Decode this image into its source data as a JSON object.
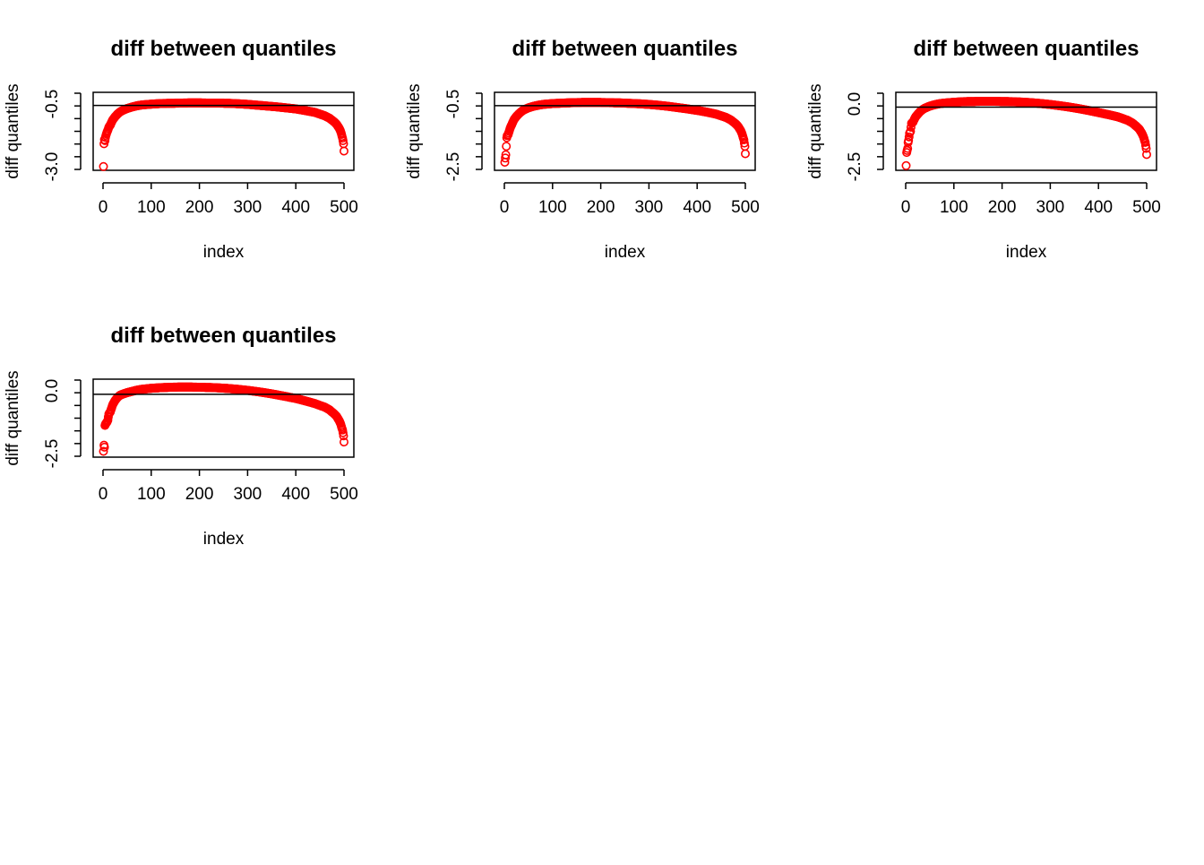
{
  "figure": {
    "background": "#ffffff",
    "point_color": "#ff0000",
    "reference_line_color": "#000000"
  },
  "chart_data": [
    {
      "type": "scatter",
      "title": "diff between quantiles",
      "xlabel": "index",
      "ylabel": "diff quantiles",
      "xlim": [
        0,
        500
      ],
      "ylim": [
        -3.0,
        0.5
      ],
      "xticks": [
        "0",
        "100",
        "200",
        "300",
        "400",
        "500"
      ],
      "yticks": [
        "-3.0",
        "-0.5"
      ],
      "reference_line_y": 0,
      "marker": "open-circle",
      "grid": false,
      "series": [
        {
          "x": [
            1,
            2,
            3,
            4,
            5,
            6,
            8,
            10,
            12,
            15,
            18,
            20,
            25,
            30,
            35,
            40,
            50,
            60,
            70,
            80,
            100,
            120,
            140,
            160,
            180,
            200,
            220,
            240,
            260,
            280,
            300,
            320,
            340,
            360,
            380,
            400,
            420,
            440,
            460,
            470,
            480,
            485,
            490,
            493,
            495,
            497,
            498,
            499,
            500
          ],
          "y": [
            -2.95,
            -1.85,
            -1.65,
            -1.7,
            -1.55,
            -1.45,
            -1.3,
            -1.2,
            -1.05,
            -0.95,
            -0.8,
            -0.7,
            -0.55,
            -0.42,
            -0.32,
            -0.25,
            -0.15,
            -0.08,
            -0.02,
            0.02,
            0.06,
            0.09,
            0.1,
            0.11,
            0.12,
            0.12,
            0.11,
            0.11,
            0.1,
            0.08,
            0.05,
            0.01,
            -0.03,
            -0.07,
            -0.12,
            -0.17,
            -0.25,
            -0.34,
            -0.5,
            -0.62,
            -0.8,
            -0.92,
            -1.1,
            -1.25,
            -1.4,
            -1.58,
            -1.7,
            -1.85,
            -2.2
          ]
        }
      ]
    },
    {
      "type": "scatter",
      "title": "diff between quantiles",
      "xlabel": "index",
      "ylabel": "diff quantiles",
      "xlim": [
        0,
        500
      ],
      "ylim": [
        -2.9,
        0.5
      ],
      "xticks": [
        "0",
        "100",
        "200",
        "300",
        "400",
        "500"
      ],
      "yticks": [
        "-2.5",
        "-0.5"
      ],
      "reference_line_y": 0,
      "marker": "open-circle",
      "grid": false,
      "series": [
        {
          "x": [
            1,
            2,
            3,
            4,
            5,
            6,
            8,
            10,
            12,
            15,
            18,
            20,
            25,
            30,
            35,
            40,
            50,
            60,
            70,
            80,
            100,
            120,
            140,
            160,
            180,
            200,
            220,
            240,
            260,
            280,
            300,
            320,
            340,
            360,
            380,
            400,
            420,
            440,
            460,
            470,
            480,
            485,
            490,
            493,
            495,
            497,
            498,
            499,
            500
          ],
          "y": [
            -2.65,
            -2.45,
            -2.3,
            -1.9,
            -1.5,
            -1.4,
            -1.35,
            -1.2,
            -1.05,
            -0.9,
            -0.75,
            -0.65,
            -0.5,
            -0.38,
            -0.28,
            -0.2,
            -0.1,
            -0.03,
            0.02,
            0.06,
            0.1,
            0.12,
            0.14,
            0.15,
            0.15,
            0.15,
            0.14,
            0.13,
            0.11,
            0.09,
            0.06,
            0.02,
            -0.03,
            -0.09,
            -0.15,
            -0.22,
            -0.3,
            -0.4,
            -0.55,
            -0.67,
            -0.85,
            -0.97,
            -1.15,
            -1.3,
            -1.45,
            -1.6,
            -1.75,
            -1.9,
            -2.25
          ]
        }
      ]
    },
    {
      "type": "scatter",
      "title": "diff between quantiles",
      "xlabel": "index",
      "ylabel": "diff quantiles",
      "xlim": [
        0,
        500
      ],
      "ylim": [
        -3.0,
        0.6
      ],
      "xticks": [
        "0",
        "100",
        "200",
        "300",
        "400",
        "500"
      ],
      "yticks": [
        "-2.5",
        "0.0"
      ],
      "reference_line_y": 0,
      "marker": "open-circle",
      "grid": false,
      "series": [
        {
          "x": [
            1,
            2,
            3,
            4,
            5,
            6,
            8,
            10,
            12,
            15,
            18,
            20,
            25,
            30,
            35,
            40,
            50,
            60,
            70,
            80,
            100,
            120,
            140,
            160,
            180,
            200,
            220,
            240,
            260,
            280,
            300,
            320,
            340,
            360,
            380,
            400,
            420,
            440,
            460,
            470,
            480,
            485,
            490,
            493,
            495,
            497,
            498,
            499,
            500
          ],
          "y": [
            -2.9,
            -2.25,
            -2.15,
            -2.05,
            -1.75,
            -1.65,
            -1.3,
            -1.2,
            -0.8,
            -0.75,
            -0.6,
            -0.5,
            -0.35,
            -0.22,
            -0.12,
            -0.05,
            0.05,
            0.12,
            0.17,
            0.2,
            0.24,
            0.27,
            0.28,
            0.29,
            0.29,
            0.28,
            0.27,
            0.25,
            0.22,
            0.18,
            0.13,
            0.07,
            0.0,
            -0.08,
            -0.17,
            -0.27,
            -0.37,
            -0.48,
            -0.65,
            -0.78,
            -0.98,
            -1.1,
            -1.3,
            -1.45,
            -1.6,
            -1.75,
            -1.9,
            -2.05,
            -2.35
          ]
        }
      ]
    },
    {
      "type": "scatter",
      "title": "diff between quantiles",
      "xlabel": "index",
      "ylabel": "diff quantiles",
      "xlim": [
        0,
        500
      ],
      "ylim": [
        -2.9,
        0.6
      ],
      "xticks": [
        "0",
        "100",
        "200",
        "300",
        "400",
        "500"
      ],
      "yticks": [
        "-2.5",
        "0.0"
      ],
      "reference_line_y": 0,
      "marker": "open-circle",
      "grid": false,
      "series": [
        {
          "x": [
            1,
            2,
            3,
            4,
            5,
            6,
            8,
            10,
            12,
            15,
            18,
            20,
            25,
            30,
            35,
            40,
            50,
            60,
            70,
            80,
            100,
            120,
            140,
            160,
            180,
            200,
            220,
            240,
            260,
            280,
            300,
            320,
            340,
            360,
            380,
            400,
            420,
            440,
            460,
            470,
            480,
            485,
            490,
            493,
            495,
            497,
            498,
            499,
            500
          ],
          "y": [
            -2.75,
            -2.45,
            -2.55,
            -1.5,
            -1.45,
            -1.4,
            -1.35,
            -1.25,
            -0.95,
            -0.85,
            -0.65,
            -0.5,
            -0.3,
            -0.15,
            -0.05,
            0.0,
            0.08,
            0.14,
            0.2,
            0.24,
            0.29,
            0.32,
            0.34,
            0.35,
            0.35,
            0.34,
            0.33,
            0.31,
            0.28,
            0.24,
            0.19,
            0.13,
            0.06,
            -0.02,
            -0.11,
            -0.2,
            -0.32,
            -0.45,
            -0.62,
            -0.75,
            -0.95,
            -1.07,
            -1.27,
            -1.42,
            -1.58,
            -1.72,
            -1.85,
            -2.0,
            -2.3
          ]
        }
      ]
    }
  ]
}
